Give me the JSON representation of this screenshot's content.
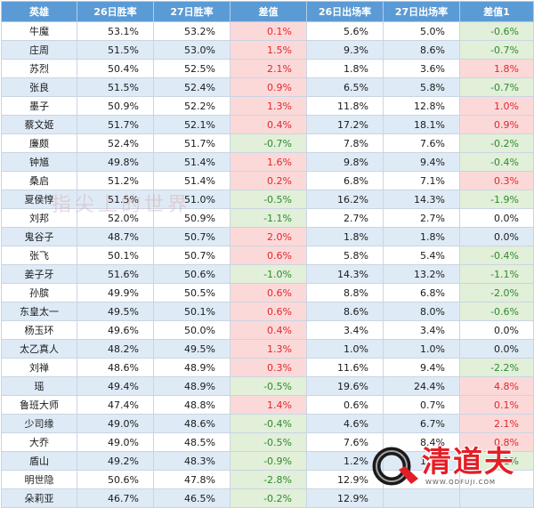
{
  "table": {
    "headers": [
      "英雄",
      "26日胜率",
      "27日胜率",
      "差值",
      "26日出场率",
      "27日出场率",
      "差值1"
    ],
    "rows": [
      [
        "牛魔",
        "53.1%",
        "53.2%",
        "0.1%",
        "5.6%",
        "5.0%",
        "-0.6%"
      ],
      [
        "庄周",
        "51.5%",
        "53.0%",
        "1.5%",
        "9.3%",
        "8.6%",
        "-0.7%"
      ],
      [
        "苏烈",
        "50.4%",
        "52.5%",
        "2.1%",
        "1.8%",
        "3.6%",
        "1.8%"
      ],
      [
        "张良",
        "51.5%",
        "52.4%",
        "0.9%",
        "6.5%",
        "5.8%",
        "-0.7%"
      ],
      [
        "墨子",
        "50.9%",
        "52.2%",
        "1.3%",
        "11.8%",
        "12.8%",
        "1.0%"
      ],
      [
        "蔡文姬",
        "51.7%",
        "52.1%",
        "0.4%",
        "17.2%",
        "18.1%",
        "0.9%"
      ],
      [
        "廉颇",
        "52.4%",
        "51.7%",
        "-0.7%",
        "7.8%",
        "7.6%",
        "-0.2%"
      ],
      [
        "钟馗",
        "49.8%",
        "51.4%",
        "1.6%",
        "9.8%",
        "9.4%",
        "-0.4%"
      ],
      [
        "桑启",
        "51.2%",
        "51.4%",
        "0.2%",
        "6.8%",
        "7.1%",
        "0.3%"
      ],
      [
        "夏侯惇",
        "51.5%",
        "51.0%",
        "-0.5%",
        "16.2%",
        "14.3%",
        "-1.9%"
      ],
      [
        "刘邦",
        "52.0%",
        "50.9%",
        "-1.1%",
        "2.7%",
        "2.7%",
        "0.0%"
      ],
      [
        "鬼谷子",
        "48.7%",
        "50.7%",
        "2.0%",
        "1.8%",
        "1.8%",
        "0.0%"
      ],
      [
        "张飞",
        "50.1%",
        "50.7%",
        "0.6%",
        "5.8%",
        "5.4%",
        "-0.4%"
      ],
      [
        "姜子牙",
        "51.6%",
        "50.6%",
        "-1.0%",
        "14.3%",
        "13.2%",
        "-1.1%"
      ],
      [
        "孙膑",
        "49.9%",
        "50.5%",
        "0.6%",
        "8.8%",
        "6.8%",
        "-2.0%"
      ],
      [
        "东皇太一",
        "49.5%",
        "50.1%",
        "0.6%",
        "8.6%",
        "8.0%",
        "-0.6%"
      ],
      [
        "杨玉环",
        "49.6%",
        "50.0%",
        "0.4%",
        "3.4%",
        "3.4%",
        "0.0%"
      ],
      [
        "太乙真人",
        "48.2%",
        "49.5%",
        "1.3%",
        "1.0%",
        "1.0%",
        "0.0%"
      ],
      [
        "刘禅",
        "48.6%",
        "48.9%",
        "0.3%",
        "11.6%",
        "9.4%",
        "-2.2%"
      ],
      [
        "瑶",
        "49.4%",
        "48.9%",
        "-0.5%",
        "19.6%",
        "24.4%",
        "4.8%"
      ],
      [
        "鲁班大师",
        "47.4%",
        "48.8%",
        "1.4%",
        "0.6%",
        "0.7%",
        "0.1%"
      ],
      [
        "少司缘",
        "49.0%",
        "48.6%",
        "-0.4%",
        "4.6%",
        "6.7%",
        "2.1%"
      ],
      [
        "大乔",
        "49.0%",
        "48.5%",
        "-0.5%",
        "7.6%",
        "8.4%",
        "0.8%"
      ],
      [
        "盾山",
        "49.2%",
        "48.3%",
        "-0.9%",
        "1.2%",
        "1.1%",
        "-0.1%"
      ],
      [
        "明世隐",
        "50.6%",
        "47.8%",
        "-2.8%",
        "12.9%",
        "",
        ""
      ],
      [
        "朵莉亚",
        "46.7%",
        "46.5%",
        "-0.2%",
        "12.9%",
        "",
        ""
      ]
    ]
  },
  "watermark": {
    "text": "指尖上的世界"
  },
  "logo": {
    "name": "清道夫",
    "url": "WWW.QDFUJI.COM",
    "accent": "#e41e26"
  },
  "colors": {
    "header_bg": "#5b9bd5",
    "positive_bg": "#fcd9d9",
    "negative_bg": "#e2efd9",
    "stripe": "#deebf7"
  }
}
